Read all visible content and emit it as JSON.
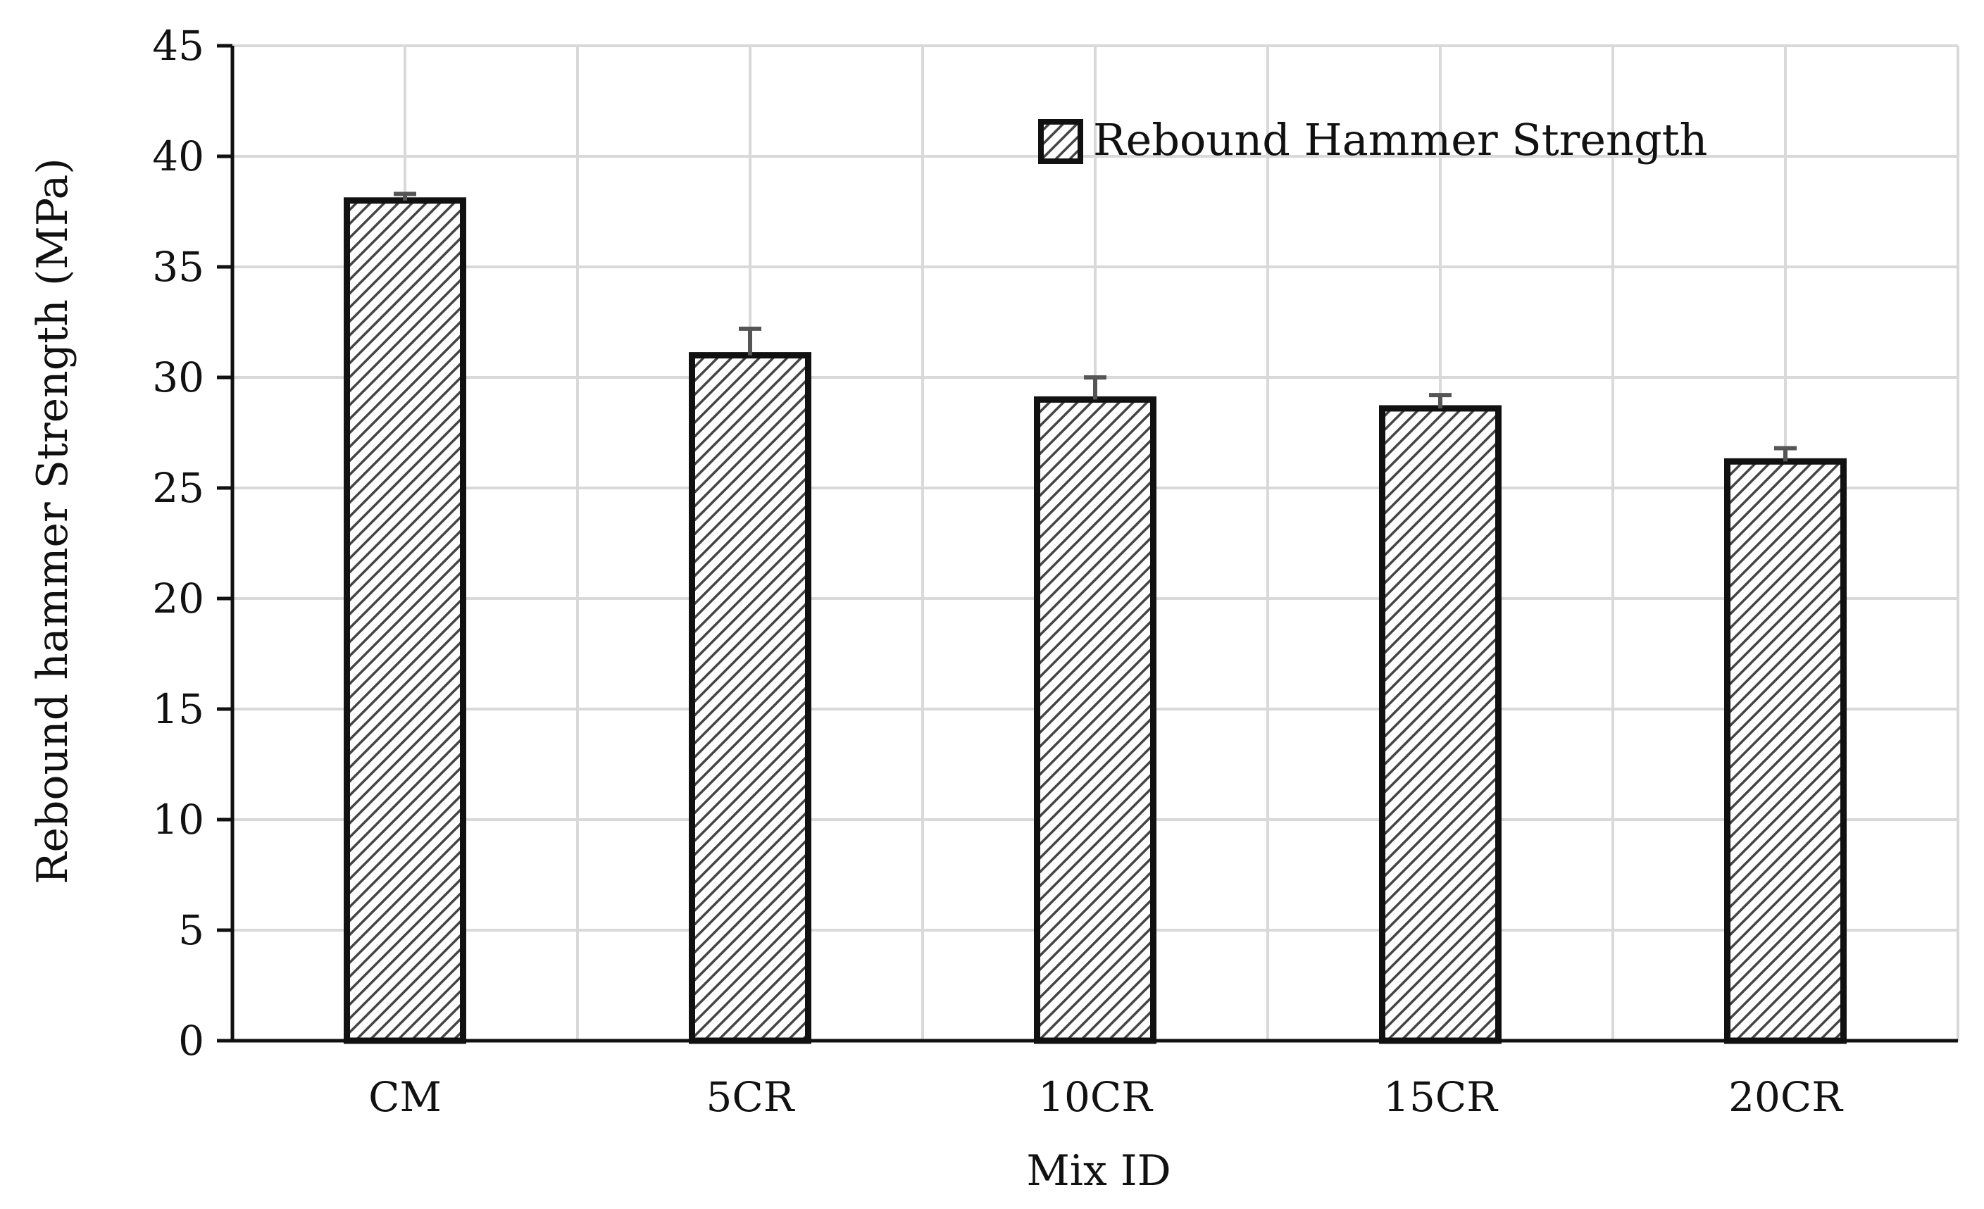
{
  "chart_data": {
    "type": "bar",
    "title": "",
    "xlabel": "Mix ID",
    "ylabel": "Rebound hammer  Strength (MPa)",
    "categories": [
      "CM",
      "5CR",
      "10CR",
      "15CR",
      "20CR"
    ],
    "series": [
      {
        "name": "Rebound Hammer Strength",
        "values": [
          38.0,
          31.0,
          29.0,
          28.6,
          26.2
        ],
        "error_plus": [
          0.3,
          1.2,
          1.0,
          0.6,
          0.6
        ]
      }
    ],
    "ylim": [
      0,
      45
    ],
    "yticks": [
      0,
      5,
      10,
      15,
      20,
      25,
      30,
      35,
      40,
      45
    ],
    "grid": true,
    "legend_position": "top-right",
    "fill_pattern": "diagonal-hatch",
    "colors": {
      "bar_outline": "#111111",
      "hatch": "#444444",
      "grid": "#d9d9d9",
      "axis": "#111111",
      "error_bar": "#555555"
    }
  }
}
